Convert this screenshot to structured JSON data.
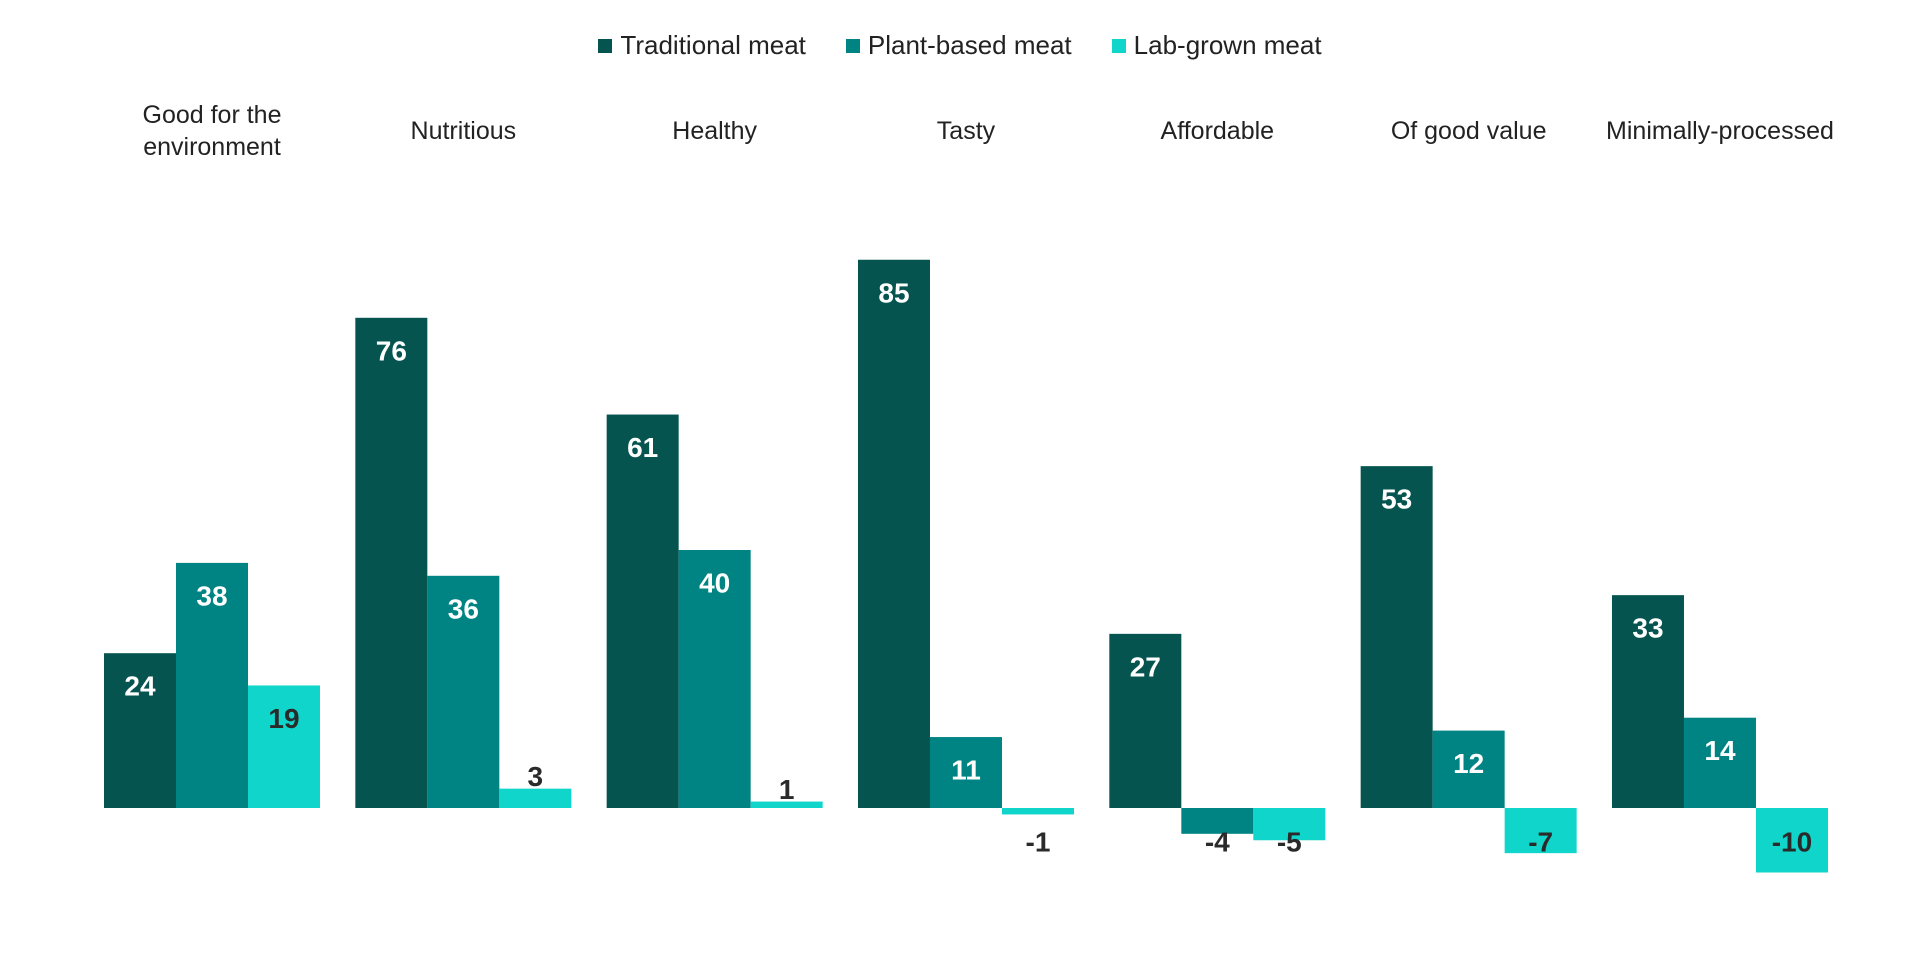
{
  "chart_data": {
    "type": "bar",
    "categories": [
      [
        "Good for the",
        "environment"
      ],
      [
        "Nutritious"
      ],
      [
        "Healthy"
      ],
      [
        "Tasty"
      ],
      [
        "Affordable"
      ],
      [
        "Of good value"
      ],
      [
        "Minimally-processed"
      ]
    ],
    "series": [
      {
        "name": "Traditional meat",
        "color": "#055450",
        "values": [
          24,
          76,
          61,
          85,
          27,
          53,
          33
        ]
      },
      {
        "name": "Plant-based meat",
        "color": "#008383",
        "values": [
          38,
          36,
          40,
          11,
          -4,
          12,
          14
        ]
      },
      {
        "name": "Lab-grown meat",
        "color": "#10D5CB",
        "values": [
          19,
          3,
          1,
          -1,
          -5,
          -7,
          -10
        ]
      }
    ],
    "title": "",
    "xlabel": "",
    "ylabel": "",
    "ylim": [
      -10,
      85
    ],
    "grid": false,
    "legend_position": "top-center",
    "category_label_position": "top",
    "value_label_color_inside": "#ffffff",
    "value_label_color_outside": "#2a2a2a"
  }
}
